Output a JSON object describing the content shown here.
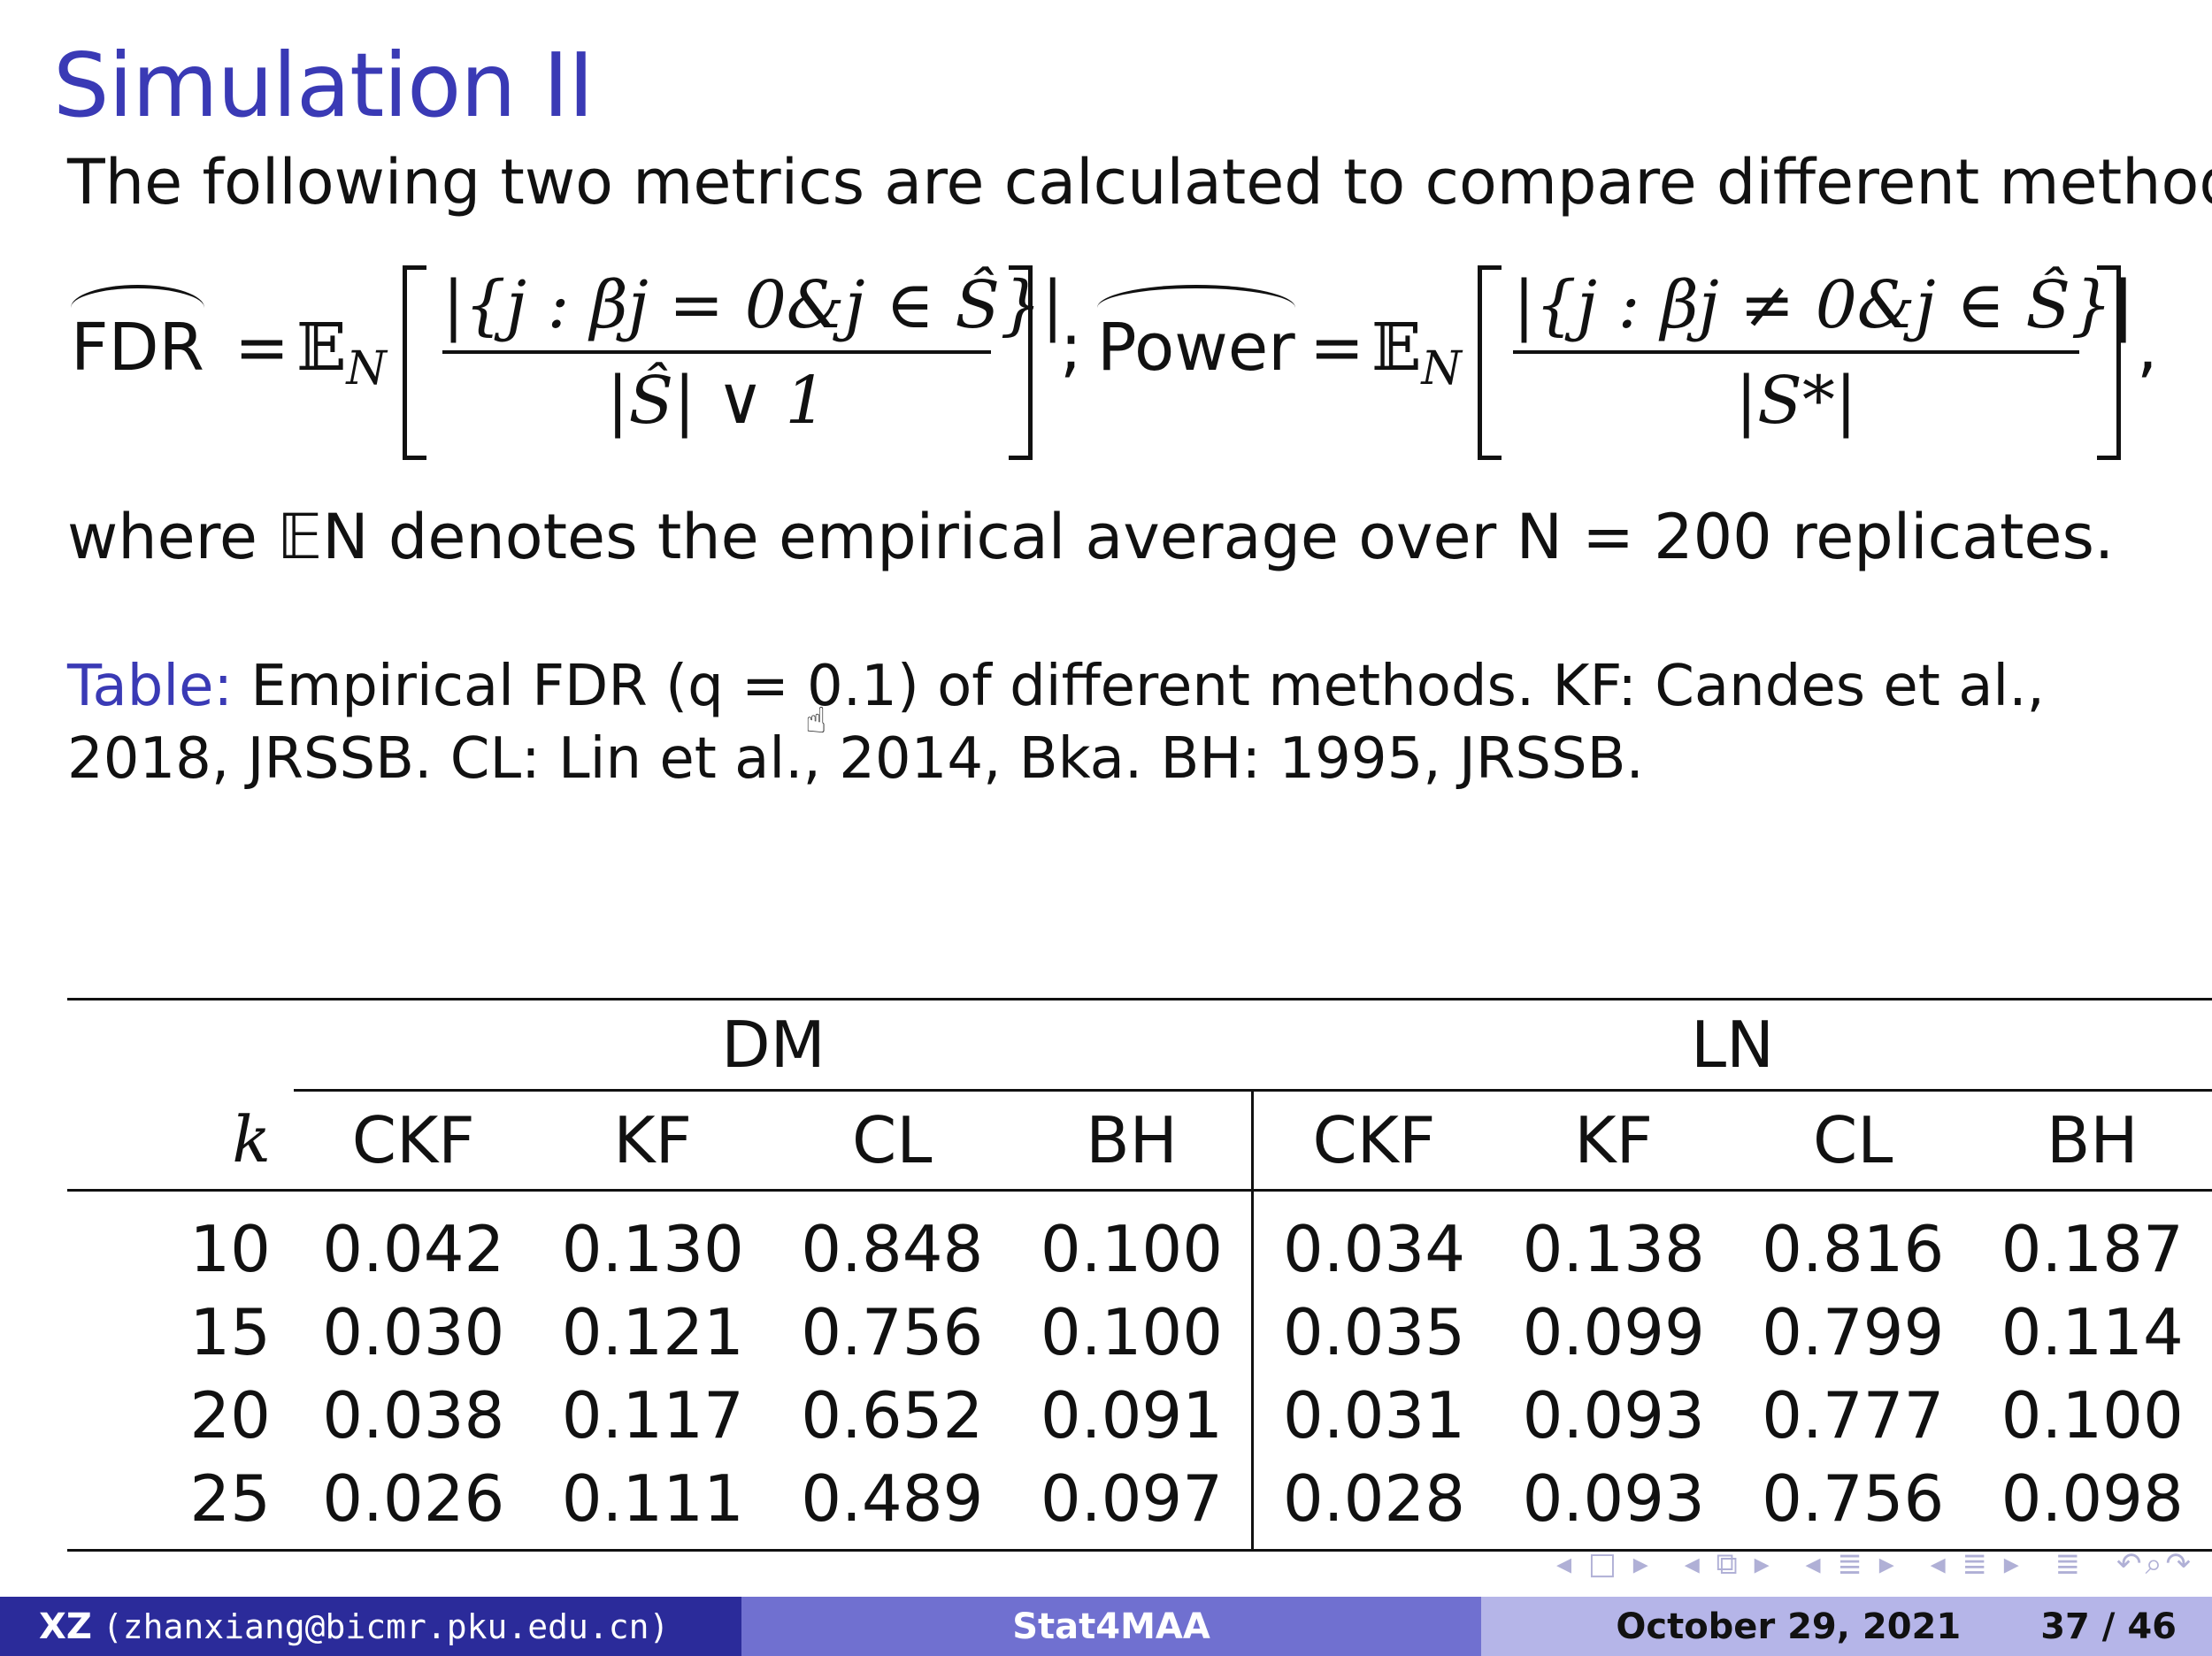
{
  "slide": {
    "title": "Simulation II",
    "intro": "The following two metrics are calculated to compare different methods:",
    "formula": {
      "fdr_label": "FDR",
      "eq": "=",
      "expect": "𝔼",
      "sub_n": "N",
      "fdr_numerator": "|{j : βj = 0&j ∈ Ŝ}|",
      "fdr_denominator": "|Ŝ| ∨ 1",
      "separator": ";",
      "power_label": "Power",
      "power_numerator": "|{j : βj ≠ 0&j ∈ Ŝ}|",
      "power_denominator": "|S*|",
      "trail": ","
    },
    "where_text": "where 𝔼N denotes the empirical average over N = 200 replicates.",
    "caption_label": "Table:",
    "caption_text": "Empirical FDR (q = 0.1) of different methods. KF: Candes et al., 2018, JRSSB. CL: Lin et al., 2014, Bka. BH: 1995, JRSSB."
  },
  "table": {
    "groups": [
      "DM",
      "LN"
    ],
    "k_header": "k",
    "columns": [
      "CKF",
      "KF",
      "CL",
      "BH",
      "CKF",
      "KF",
      "CL",
      "BH"
    ],
    "rows": [
      {
        "k": "10",
        "values": [
          "0.042",
          "0.130",
          "0.848",
          "0.100",
          "0.034",
          "0.138",
          "0.816",
          "0.187"
        ]
      },
      {
        "k": "15",
        "values": [
          "0.030",
          "0.121",
          "0.756",
          "0.100",
          "0.035",
          "0.099",
          "0.799",
          "0.114"
        ]
      },
      {
        "k": "20",
        "values": [
          "0.038",
          "0.117",
          "0.652",
          "0.091",
          "0.031",
          "0.093",
          "0.777",
          "0.100"
        ]
      },
      {
        "k": "25",
        "values": [
          "0.026",
          "0.111",
          "0.489",
          "0.097",
          "0.028",
          "0.093",
          "0.756",
          "0.098"
        ]
      }
    ]
  },
  "footer": {
    "author": "XZ",
    "email": "(zhanxiang@bicmr.pku.edu.cn)",
    "short_title": "Stat4MAA",
    "date": "October 29, 2021",
    "page": "37 / 46"
  },
  "nav_icons": [
    "nav-slide-prev-next",
    "nav-frame",
    "nav-subsection",
    "nav-section",
    "nav-align",
    "nav-search-undo"
  ],
  "colors": {
    "title": "#3a3ab5",
    "footer_dark": "#2b2b9a",
    "footer_mid": "#7070d0",
    "footer_light": "#b5b5e8"
  }
}
